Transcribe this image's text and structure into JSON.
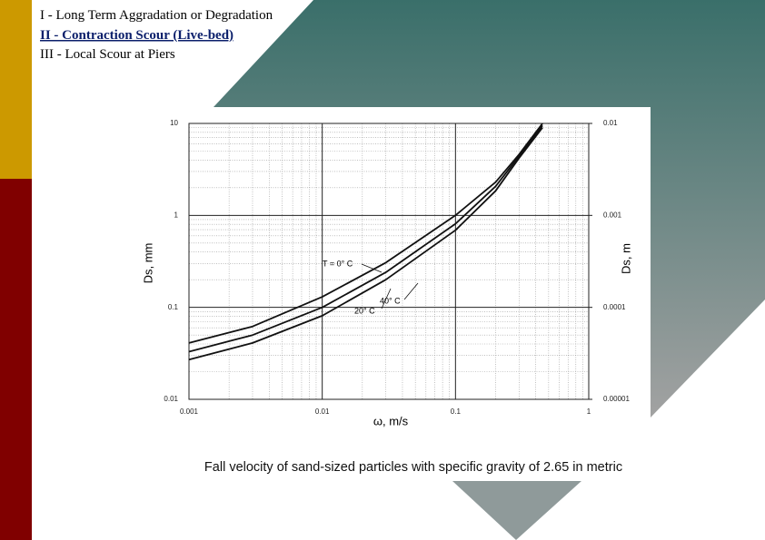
{
  "slide": {
    "outline": [
      "I - Long Term Aggradation or Degradation",
      "II - Contraction Scour (Live-bed)",
      "III - Local Scour at Piers"
    ],
    "caption": "Fall velocity of sand-sized particles with specific gravity of 2.65 in metric"
  },
  "chart_data": {
    "type": "line",
    "log_x": true,
    "log_y": true,
    "grid": true,
    "xlabel": "ω, m/s",
    "ylabel": "Ds, mm",
    "y2label": "Ds, m",
    "x": [
      0.001,
      0.003,
      0.01,
      0.03,
      0.1,
      0.2,
      0.3,
      0.45
    ],
    "xlim": [
      0.001,
      1
    ],
    "xticks": [
      0.001,
      0.01,
      0.1,
      1
    ],
    "ylim": [
      0.01,
      10
    ],
    "yticks": [
      0.01,
      0.1,
      1,
      10
    ],
    "y2lim": [
      1e-05,
      0.01
    ],
    "y2ticks": [
      1e-05,
      0.0001,
      0.001,
      0.01
    ],
    "series": [
      {
        "name": "T = 0° C",
        "color": "#111111",
        "values": [
          0.041,
          0.062,
          0.13,
          0.306,
          1.0,
          2.3,
          4.6,
          10
        ]
      },
      {
        "name": "20° C",
        "color": "#111111",
        "values": [
          0.033,
          0.05,
          0.1,
          0.24,
          0.81,
          2.07,
          4.4,
          9.5
        ]
      },
      {
        "name": "40° C",
        "color": "#111111",
        "values": [
          0.027,
          0.041,
          0.081,
          0.2,
          0.69,
          1.85,
          4.2,
          9
        ]
      }
    ]
  }
}
